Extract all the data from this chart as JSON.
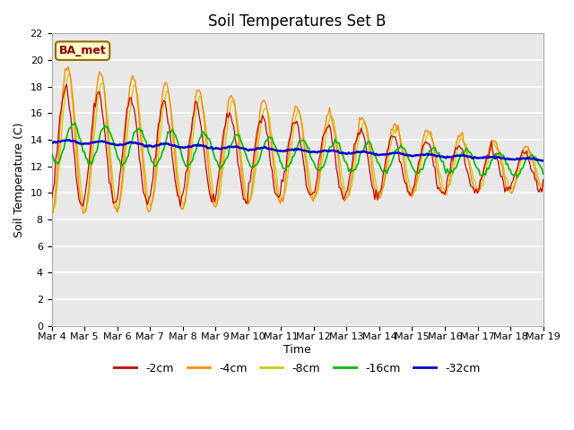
{
  "title": "Soil Temperatures Set B",
  "xlabel": "Time",
  "ylabel": "Soil Temperature (C)",
  "annotation": "BA_met",
  "xlim": [
    0,
    15
  ],
  "ylim": [
    0,
    22
  ],
  "yticks": [
    0,
    2,
    4,
    6,
    8,
    10,
    12,
    14,
    16,
    18,
    20,
    22
  ],
  "xtick_labels": [
    "Mar 4",
    "Mar 5",
    "Mar 6",
    "Mar 7",
    "Mar 8",
    "Mar 9",
    "Mar 10",
    "Mar 11",
    "Mar 12",
    "Mar 13",
    "Mar 14",
    "Mar 15",
    "Mar 16",
    "Mar 17",
    "Mar 18",
    "Mar 19"
  ],
  "legend_labels": [
    "-2cm",
    "-4cm",
    "-8cm",
    "-16cm",
    "-32cm"
  ],
  "legend_colors": [
    "#cc0000",
    "#ff8c00",
    "#cccc00",
    "#00bb00",
    "#0000cc"
  ],
  "line_colors": {
    "2cm": "#cc0000",
    "4cm": "#ff8c00",
    "8cm": "#cccc00",
    "16cm": "#00bb00",
    "32cm": "#0000cc"
  },
  "fig_facecolor": "#ffffff",
  "ax_facecolor": "#e8e8e8",
  "title_fontsize": 12,
  "axis_label_fontsize": 9,
  "tick_fontsize": 8
}
